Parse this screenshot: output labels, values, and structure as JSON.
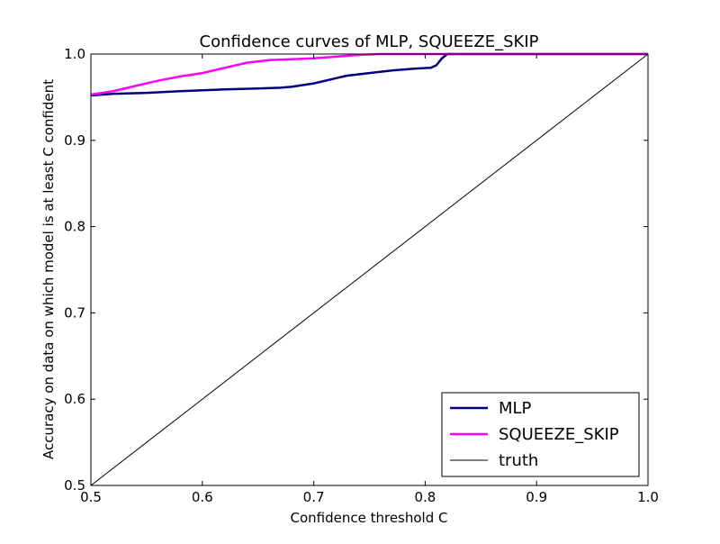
{
  "chart_data": {
    "type": "line",
    "title": "Confidence curves of MLP, SQUEEZE_SKIP",
    "xlabel": "Confidence threshold C",
    "ylabel": "Accuracy on data on which model is at least C confident",
    "xlim": [
      0.5,
      1.0
    ],
    "ylim": [
      0.5,
      1.0
    ],
    "xticks": [
      "0.5",
      "0.6",
      "0.7",
      "0.8",
      "0.9",
      "1.0"
    ],
    "yticks": [
      "0.5",
      "0.6",
      "0.7",
      "0.8",
      "0.9",
      "1.0"
    ],
    "legend_position": "lower-right",
    "series": [
      {
        "name": "MLP",
        "color": "#000080",
        "x": [
          0.5,
          0.52,
          0.55,
          0.58,
          0.6,
          0.62,
          0.65,
          0.67,
          0.68,
          0.7,
          0.72,
          0.73,
          0.75,
          0.77,
          0.79,
          0.805,
          0.81,
          0.815,
          0.82,
          0.85,
          0.9,
          0.95,
          1.0
        ],
        "y": [
          0.952,
          0.954,
          0.955,
          0.957,
          0.958,
          0.959,
          0.96,
          0.961,
          0.962,
          0.966,
          0.972,
          0.975,
          0.978,
          0.981,
          0.983,
          0.984,
          0.987,
          0.995,
          1.0,
          1.0,
          1.0,
          1.0,
          1.0
        ]
      },
      {
        "name": "SQUEEZE_SKIP",
        "color": "#ff00ff",
        "x": [
          0.5,
          0.52,
          0.54,
          0.56,
          0.58,
          0.6,
          0.62,
          0.64,
          0.66,
          0.68,
          0.7,
          0.72,
          0.74,
          0.76,
          0.78,
          0.8,
          0.85,
          0.9,
          0.95,
          1.0
        ],
        "y": [
          0.953,
          0.957,
          0.963,
          0.969,
          0.974,
          0.978,
          0.984,
          0.99,
          0.993,
          0.994,
          0.995,
          0.997,
          0.999,
          1.0,
          1.0,
          1.0,
          1.0,
          1.0,
          1.0,
          1.0
        ]
      },
      {
        "name": "truth",
        "color": "#000000",
        "x": [
          0.5,
          1.0
        ],
        "y": [
          0.5,
          1.0
        ]
      }
    ]
  }
}
